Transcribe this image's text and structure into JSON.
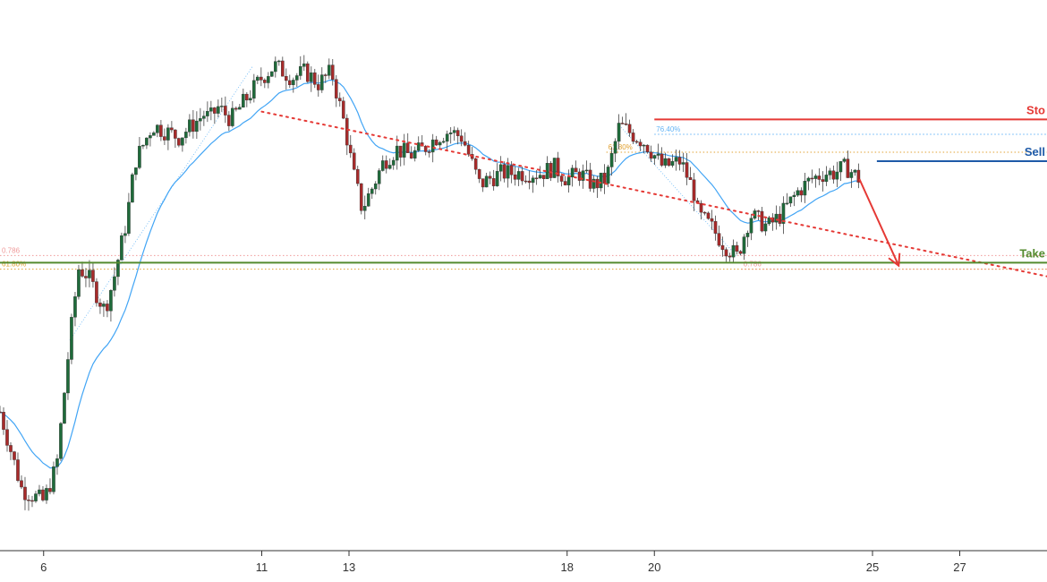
{
  "chart_data": {
    "type": "candlestick",
    "xlabel": "",
    "ylabel": "",
    "x_ticks": [
      "6",
      "11",
      "13",
      "18",
      "20",
      "25",
      "27"
    ],
    "x_range": [
      5,
      29
    ],
    "y_range": [
      0,
      100
    ],
    "candles_mode": "synthesized",
    "price_path": [
      [
        5.0,
        40
      ],
      [
        5.5,
        27
      ],
      [
        6.0,
        25
      ],
      [
        6.3,
        31
      ],
      [
        6.6,
        52
      ],
      [
        6.8,
        64
      ],
      [
        7.0,
        63
      ],
      [
        7.2,
        60
      ],
      [
        7.4,
        57
      ],
      [
        7.6,
        62
      ],
      [
        7.9,
        72
      ],
      [
        8.1,
        82
      ],
      [
        8.3,
        85
      ],
      [
        8.5,
        88
      ],
      [
        8.8,
        87
      ],
      [
        9.1,
        86
      ],
      [
        9.4,
        88
      ],
      [
        9.7,
        90
      ],
      [
        9.8,
        89
      ],
      [
        10.0,
        91
      ],
      [
        10.3,
        89
      ],
      [
        10.6,
        92
      ],
      [
        10.8,
        94
      ],
      [
        11.0,
        96
      ],
      [
        11.3,
        98
      ],
      [
        11.7,
        96
      ],
      [
        12.0,
        97
      ],
      [
        12.3,
        95
      ],
      [
        12.6,
        97
      ],
      [
        12.7,
        94
      ],
      [
        12.9,
        88
      ],
      [
        13.1,
        80
      ],
      [
        13.3,
        74
      ],
      [
        13.5,
        77
      ],
      [
        13.8,
        82
      ],
      [
        14.1,
        84
      ],
      [
        14.4,
        83
      ],
      [
        14.7,
        84
      ],
      [
        15.0,
        86
      ],
      [
        15.3,
        87
      ],
      [
        15.6,
        86
      ],
      [
        15.8,
        82
      ],
      [
        16.0,
        78
      ],
      [
        16.2,
        79
      ],
      [
        16.5,
        80
      ],
      [
        16.8,
        80
      ],
      [
        17.1,
        80
      ],
      [
        17.4,
        80
      ],
      [
        17.7,
        81
      ],
      [
        18.0,
        79
      ],
      [
        18.3,
        80
      ],
      [
        18.6,
        78
      ],
      [
        18.9,
        79
      ],
      [
        19.2,
        88
      ],
      [
        19.4,
        87
      ],
      [
        19.6,
        86
      ],
      [
        19.8,
        85
      ],
      [
        20.0,
        83
      ],
      [
        20.2,
        81
      ],
      [
        20.6,
        82
      ],
      [
        20.9,
        77
      ],
      [
        21.0,
        73
      ],
      [
        21.3,
        71
      ],
      [
        21.6,
        68
      ],
      [
        21.9,
        66
      ],
      [
        22.2,
        73
      ],
      [
        22.4,
        72
      ],
      [
        22.6,
        71
      ],
      [
        22.9,
        73
      ],
      [
        23.1,
        75
      ],
      [
        23.3,
        77
      ],
      [
        23.6,
        79
      ],
      [
        23.9,
        80
      ],
      [
        24.1,
        80
      ],
      [
        24.4,
        81
      ],
      [
        24.7,
        79
      ]
    ],
    "ema_color": "#42a5f5",
    "up_color": "#1e6b3a",
    "down_color": "#a82a2a",
    "trendline": {
      "from": [
        11.0,
        90.3
      ],
      "to": [
        29.0,
        62.7
      ],
      "color": "#e53935",
      "style": "dotted"
    },
    "levels": [
      {
        "name": "Stop",
        "label": "Sto",
        "y": 89,
        "x_start": 20.0,
        "color": "#e53935"
      },
      {
        "name": "Sell",
        "label": "Sell",
        "y": 82,
        "x_start": 25.1,
        "color": "#1e5aa8"
      },
      {
        "name": "Take",
        "label": "Take",
        "y": 65,
        "x_start": 5.0,
        "color": "#558b2f"
      }
    ],
    "fib_lines": [
      {
        "label": "76.40%",
        "y": 86.5,
        "x_start": 20.0,
        "color": "#64b5f6"
      },
      {
        "label": "61.80%",
        "y": 83.5,
        "x_start": 18.9,
        "color": "#e0a030"
      },
      {
        "label": "0.786",
        "y": 66.2,
        "x_start": 5.0,
        "color": "#ef9a9a"
      },
      {
        "label": "61.80%",
        "y": 63.9,
        "x_start": 5.0,
        "color": "#e0a030"
      },
      {
        "label": "0.786",
        "y": 63.9,
        "x_start": 22.0,
        "color": "#ef9a9a"
      }
    ],
    "arrow": {
      "from": [
        24.7,
        79.0
      ],
      "to": [
        25.6,
        64.5
      ],
      "color": "#e53935"
    },
    "fib_diagonals": [
      {
        "from": [
          6.6,
          52.0
        ],
        "to": [
          10.8,
          98.0
        ],
        "color": "#64b5f6"
      },
      {
        "from": [
          19.2,
          88.0
        ],
        "to": [
          21.9,
          66.0
        ],
        "color": "#64b5f6"
      }
    ]
  }
}
